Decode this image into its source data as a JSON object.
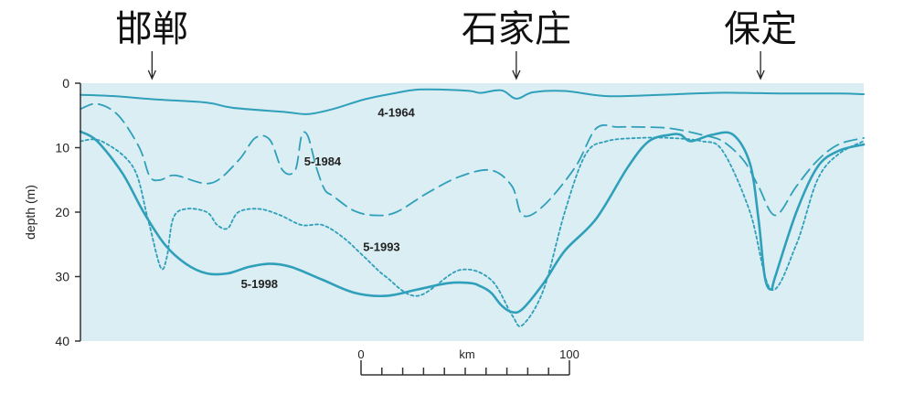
{
  "colors": {
    "background": "#daeef4",
    "line": "#2f9fba",
    "axis": "#333333"
  },
  "chart_data": {
    "type": "line",
    "xlabel": "",
    "ylabel": "depth (m)",
    "ylim": [
      0,
      40
    ],
    "y_inverted": true,
    "y_ticks": [
      "0",
      "10",
      "20",
      "30",
      "40"
    ],
    "grid": false,
    "locations": [
      {
        "name": "邯郸",
        "x": 34
      },
      {
        "name": "石家庄",
        "x": 207
      },
      {
        "name": "保定",
        "x": 323
      }
    ],
    "scale_bar": {
      "labels": [
        "0",
        "km",
        "100"
      ]
    },
    "series": [
      {
        "name": "4-1964",
        "style": "solid-thin",
        "x": [
          0,
          16,
          35,
          60,
          72,
          98,
          108,
          120,
          135,
          150,
          160,
          172,
          185,
          190,
          200,
          207,
          215,
          230,
          250,
          275,
          300,
          315,
          335,
          360,
          372
        ],
        "y": [
          1.8,
          2.0,
          2.5,
          3.0,
          3.8,
          4.5,
          4.8,
          4.0,
          2.5,
          1.5,
          1.0,
          1.0,
          1.2,
          1.5,
          1.1,
          2.4,
          1.4,
          1.2,
          2.0,
          1.8,
          1.5,
          1.5,
          1.6,
          1.6,
          1.7
        ]
      },
      {
        "name": "5-1984",
        "style": "dashed",
        "x": [
          0,
          8,
          18,
          28,
          33,
          38,
          45,
          62,
          75,
          83,
          90,
          96,
          102,
          105,
          108,
          112,
          116,
          120,
          130,
          140,
          150,
          165,
          180,
          195,
          205,
          210,
          220,
          235,
          245,
          255,
          265,
          280,
          295,
          305,
          315,
          322,
          330,
          340,
          350,
          360,
          372
        ],
        "y": [
          4,
          3.2,
          5,
          10,
          14.5,
          15,
          14.3,
          15.5,
          12,
          8.5,
          8.8,
          13.5,
          13.5,
          8.2,
          8.2,
          13,
          16.5,
          17.5,
          19.8,
          20.5,
          20,
          17,
          14.5,
          13.5,
          16,
          20.5,
          19,
          13,
          7,
          6.8,
          6.8,
          7,
          8,
          9,
          12,
          16,
          20.5,
          16,
          12,
          9.5,
          8.5
        ]
      },
      {
        "name": "5-1993",
        "style": "dotted",
        "x": [
          0,
          10,
          25,
          32,
          38,
          41,
          44,
          50,
          60,
          65,
          70,
          75,
          85,
          95,
          105,
          115,
          125,
          135,
          145,
          160,
          180,
          195,
          205,
          210,
          220,
          230,
          240,
          250,
          265,
          280,
          295,
          305,
          318,
          328,
          340,
          350,
          360,
          372
        ],
        "y": [
          9,
          9,
          13,
          21,
          28.5,
          27,
          21,
          19.5,
          20,
          22,
          22.5,
          20,
          19.5,
          20.5,
          22,
          22,
          24,
          27,
          30,
          33,
          29,
          30.5,
          36,
          37.5,
          32,
          20,
          11,
          9,
          8.5,
          8.5,
          9,
          10.5,
          20,
          32,
          25,
          15,
          11,
          9
        ]
      },
      {
        "name": "5-1998",
        "style": "solid-thick",
        "x": [
          0,
          8,
          20,
          30,
          40,
          50,
          60,
          70,
          80,
          90,
          100,
          115,
          130,
          145,
          160,
          175,
          185,
          190,
          195,
          200,
          205,
          210,
          220,
          230,
          245,
          260,
          270,
          280,
          285,
          290,
          300,
          310,
          318,
          322,
          325,
          328,
          330,
          340,
          350,
          360,
          372
        ],
        "y": [
          7.5,
          9,
          14,
          20,
          25,
          28,
          29.5,
          29.5,
          28.5,
          28,
          28.5,
          30.5,
          32.5,
          33,
          32,
          31,
          31,
          31.5,
          32.5,
          34.5,
          35.5,
          35,
          31,
          26,
          21,
          13,
          9,
          8,
          8,
          9,
          8,
          8,
          12.5,
          21,
          30,
          32,
          30,
          20,
          13,
          10.5,
          9.5
        ]
      }
    ],
    "annotations": [
      {
        "text": "4-1964",
        "series": "4-1964"
      },
      {
        "text": "5-1984",
        "series": "5-1984"
      },
      {
        "text": "5-1993",
        "series": "5-1993"
      },
      {
        "text": "5-1998",
        "series": "5-1998"
      }
    ]
  }
}
